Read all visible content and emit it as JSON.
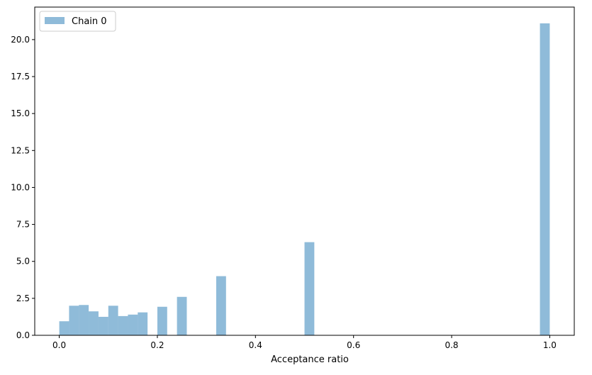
{
  "chart_data": {
    "type": "bar",
    "xlabel": "Acceptance ratio",
    "ylabel": "",
    "xlim": [
      -0.05,
      1.05
    ],
    "ylim": [
      0,
      22.2
    ],
    "xticks": [
      {
        "value": 0.0,
        "label": "0.0"
      },
      {
        "value": 0.2,
        "label": "0.2"
      },
      {
        "value": 0.4,
        "label": "0.4"
      },
      {
        "value": 0.6,
        "label": "0.6"
      },
      {
        "value": 0.8,
        "label": "0.8"
      },
      {
        "value": 1.0,
        "label": "1.0"
      }
    ],
    "yticks": [
      {
        "value": 0.0,
        "label": "0.0"
      },
      {
        "value": 2.5,
        "label": "2.5"
      },
      {
        "value": 5.0,
        "label": "5.0"
      },
      {
        "value": 7.5,
        "label": "7.5"
      },
      {
        "value": 10.0,
        "label": "10.0"
      },
      {
        "value": 12.5,
        "label": "12.5"
      },
      {
        "value": 15.0,
        "label": "15.0"
      },
      {
        "value": 17.5,
        "label": "17.5"
      },
      {
        "value": 20.0,
        "label": "20.0"
      }
    ],
    "bin_width": 0.02,
    "grid": false,
    "legend_position": "top-left",
    "series": [
      {
        "name": "Chain 0",
        "color": "#1f77b4",
        "alpha": 0.5,
        "bins": [
          {
            "start": 0.0,
            "value": 0.95
          },
          {
            "start": 0.02,
            "value": 2.0
          },
          {
            "start": 0.04,
            "value": 2.05
          },
          {
            "start": 0.06,
            "value": 1.62
          },
          {
            "start": 0.08,
            "value": 1.25
          },
          {
            "start": 0.1,
            "value": 2.0
          },
          {
            "start": 0.12,
            "value": 1.3
          },
          {
            "start": 0.14,
            "value": 1.4
          },
          {
            "start": 0.16,
            "value": 1.55
          },
          {
            "start": 0.2,
            "value": 1.93
          },
          {
            "start": 0.24,
            "value": 2.6
          },
          {
            "start": 0.32,
            "value": 4.0
          },
          {
            "start": 0.5,
            "value": 6.3
          },
          {
            "start": 0.98,
            "value": 21.1
          }
        ]
      }
    ]
  }
}
